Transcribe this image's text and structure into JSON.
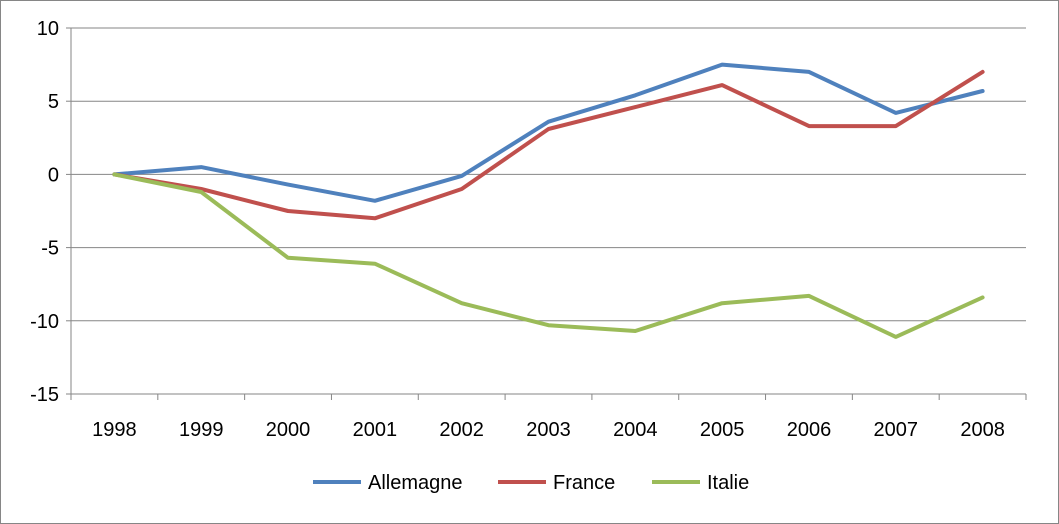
{
  "chart_data": {
    "type": "line",
    "title": "",
    "xlabel": "",
    "ylabel": "",
    "categories": [
      "1998",
      "1999",
      "2000",
      "2001",
      "2002",
      "2003",
      "2004",
      "2005",
      "2006",
      "2007",
      "2008"
    ],
    "ylim": [
      -15,
      10
    ],
    "yticks": [
      10,
      5,
      0,
      -5,
      -10,
      -15
    ],
    "grid": true,
    "legend_position": "bottom",
    "series": [
      {
        "name": "Allemagne",
        "color": "#4f81bd",
        "values": [
          0,
          0.5,
          -0.7,
          -1.8,
          -0.1,
          3.6,
          5.4,
          7.5,
          7.0,
          4.2,
          5.7
        ]
      },
      {
        "name": "France",
        "color": "#c0504d",
        "values": [
          0,
          -1.0,
          -2.5,
          -3.0,
          -1.0,
          3.1,
          4.6,
          6.1,
          3.3,
          3.3,
          7.0
        ]
      },
      {
        "name": "Italie",
        "color": "#9bbb59",
        "values": [
          0,
          -1.2,
          -5.7,
          -6.1,
          -8.8,
          -10.3,
          -10.7,
          -8.8,
          -8.3,
          -11.1,
          -8.4
        ]
      }
    ]
  }
}
